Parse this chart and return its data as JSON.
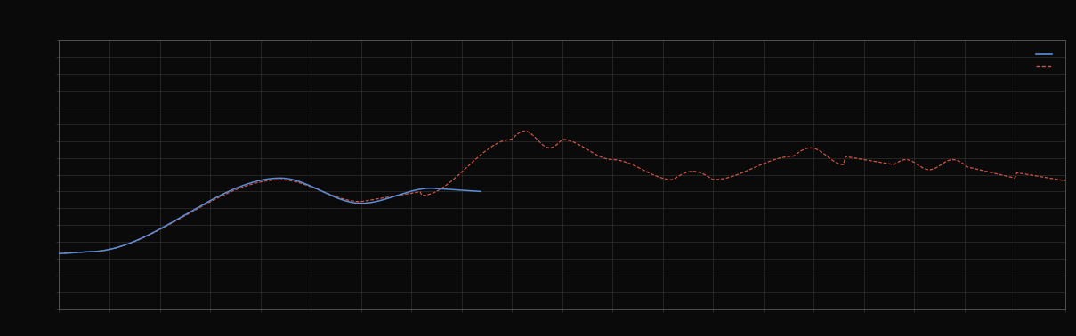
{
  "background_color": "#0a0a0a",
  "plot_bg_color": "#0a0a0a",
  "grid_color": "#3a3a3a",
  "line1_color": "#5b8dd9",
  "line2_color": "#cc5544",
  "x_min": 0,
  "x_max": 100,
  "y_min": 0,
  "y_max": 8,
  "figsize": [
    12.09,
    3.78
  ],
  "dpi": 100,
  "spine_color": "#666666"
}
